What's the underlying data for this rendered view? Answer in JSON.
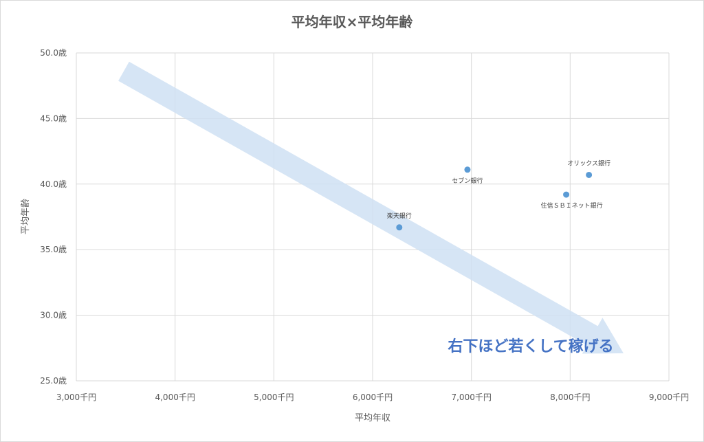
{
  "chart_data": {
    "type": "scatter",
    "title": "平均年収×平均年齢",
    "xlabel": "平均年収",
    "ylabel": "平均年齢",
    "xlim": [
      3000,
      9000
    ],
    "ylim": [
      25.0,
      50.0
    ],
    "x_ticks": [
      3000,
      4000,
      5000,
      6000,
      7000,
      8000,
      9000
    ],
    "x_tick_labels": [
      "3,000千円",
      "4,000千円",
      "5,000千円",
      "6,000千円",
      "7,000千円",
      "8,000千円",
      "9,000千円"
    ],
    "y_ticks": [
      25,
      30,
      35,
      40,
      45,
      50
    ],
    "y_tick_labels": [
      "25.0歳",
      "30.0歳",
      "35.0歳",
      "40.0歳",
      "45.0歳",
      "50.0歳"
    ],
    "grid": true,
    "points": [
      {
        "label": "楽天銀行",
        "x": 6270,
        "y": 36.7
      },
      {
        "label": "セブン銀行",
        "x": 6960,
        "y": 41.1
      },
      {
        "label": "住信ＳＢＩネット銀行",
        "x": 7960,
        "y": 39.2
      },
      {
        "label": "オリックス銀行",
        "x": 8190,
        "y": 40.7
      }
    ],
    "annotation": {
      "text": "右下ほど若くして稼げる",
      "arrow_from": {
        "x": 3480,
        "y": 48.6
      },
      "arrow_to": {
        "x": 8540,
        "y": 27.1
      }
    },
    "colors": {
      "marker": "#5b9bd5",
      "arrow": "#cfe0f3",
      "annotation": "#4472c4",
      "grid": "#d9d9d9"
    }
  }
}
